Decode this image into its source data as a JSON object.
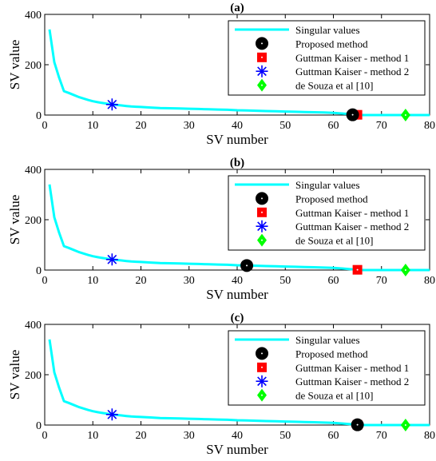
{
  "chart_data": [
    {
      "type": "line",
      "title": "(a)",
      "xlabel": "SV number",
      "ylabel": "SV value",
      "xlim": [
        0,
        80
      ],
      "ylim": [
        0,
        400
      ],
      "xticks": [
        0,
        10,
        20,
        30,
        40,
        50,
        60,
        70,
        80
      ],
      "yticks": [
        0,
        200,
        400
      ],
      "legend_position": "top-right",
      "series": [
        {
          "name": "Singular values",
          "kind": "line",
          "color": "#00ffff",
          "x": [
            1,
            2,
            3,
            4,
            5,
            6,
            7,
            8,
            9,
            10,
            11,
            12,
            13,
            14,
            15,
            16,
            17,
            18,
            19,
            20,
            22,
            24,
            26,
            28,
            30,
            32,
            34,
            36,
            38,
            40,
            42,
            44,
            46,
            48,
            50,
            52,
            54,
            56,
            58,
            60,
            62,
            64,
            65,
            66,
            68,
            70,
            72,
            74,
            76,
            78,
            80
          ],
          "y": [
            340,
            210,
            148,
            95,
            88,
            80,
            72,
            66,
            60,
            55,
            51,
            48,
            45,
            42,
            40,
            38,
            36,
            34,
            33,
            32,
            30,
            28,
            27,
            26,
            25,
            24,
            23,
            22,
            21,
            19,
            18,
            17,
            16,
            15,
            14,
            13,
            12,
            11,
            10,
            9,
            6,
            3,
            1,
            0,
            0,
            0,
            0,
            0,
            0,
            0,
            0
          ]
        },
        {
          "name": "Proposed method",
          "kind": "marker",
          "marker": "circle",
          "color": "#000000",
          "x": [
            64
          ],
          "y": [
            1
          ]
        },
        {
          "name": "Guttman Kaiser - method 1",
          "kind": "marker",
          "marker": "square",
          "color": "#ff0000",
          "x": [
            65
          ],
          "y": [
            1
          ]
        },
        {
          "name": "Guttman Kaiser - method 2",
          "kind": "marker",
          "marker": "asterisk",
          "color": "#0000ff",
          "x": [
            14
          ],
          "y": [
            42
          ]
        },
        {
          "name": "de Souza et al [10]",
          "kind": "marker",
          "marker": "diamond",
          "color": "#00ff00",
          "x": [
            75
          ],
          "y": [
            0
          ]
        }
      ]
    },
    {
      "type": "line",
      "title": "(b)",
      "xlabel": "SV number",
      "ylabel": "SV value",
      "xlim": [
        0,
        80
      ],
      "ylim": [
        0,
        400
      ],
      "xticks": [
        0,
        10,
        20,
        30,
        40,
        50,
        60,
        70,
        80
      ],
      "yticks": [
        0,
        200,
        400
      ],
      "legend_position": "top-right",
      "series": [
        {
          "name": "Singular values",
          "kind": "line",
          "color": "#00ffff",
          "x": [
            1,
            2,
            3,
            4,
            5,
            6,
            7,
            8,
            9,
            10,
            11,
            12,
            13,
            14,
            15,
            16,
            17,
            18,
            19,
            20,
            22,
            24,
            26,
            28,
            30,
            32,
            34,
            36,
            38,
            40,
            42,
            44,
            46,
            48,
            50,
            52,
            54,
            56,
            58,
            60,
            62,
            64,
            65,
            66,
            68,
            70,
            72,
            74,
            76,
            78,
            80
          ],
          "y": [
            340,
            210,
            148,
            95,
            88,
            80,
            72,
            66,
            60,
            55,
            51,
            48,
            45,
            42,
            40,
            38,
            36,
            34,
            33,
            32,
            30,
            28,
            27,
            26,
            25,
            24,
            23,
            22,
            21,
            19,
            18,
            17,
            16,
            15,
            14,
            13,
            12,
            11,
            10,
            9,
            6,
            3,
            1,
            0,
            0,
            0,
            0,
            0,
            0,
            0,
            0
          ]
        },
        {
          "name": "Proposed method",
          "kind": "marker",
          "marker": "circle",
          "color": "#000000",
          "x": [
            42
          ],
          "y": [
            18
          ]
        },
        {
          "name": "Guttman Kaiser - method 1",
          "kind": "marker",
          "marker": "square",
          "color": "#ff0000",
          "x": [
            65
          ],
          "y": [
            1
          ]
        },
        {
          "name": "Guttman Kaiser - method 2",
          "kind": "marker",
          "marker": "asterisk",
          "color": "#0000ff",
          "x": [
            14
          ],
          "y": [
            42
          ]
        },
        {
          "name": "de Souza et al [10]",
          "kind": "marker",
          "marker": "diamond",
          "color": "#00ff00",
          "x": [
            75
          ],
          "y": [
            0
          ]
        }
      ]
    },
    {
      "type": "line",
      "title": "(c)",
      "xlabel": "SV number",
      "ylabel": "SV value",
      "xlim": [
        0,
        80
      ],
      "ylim": [
        0,
        400
      ],
      "xticks": [
        0,
        10,
        20,
        30,
        40,
        50,
        60,
        70,
        80
      ],
      "yticks": [
        0,
        200,
        400
      ],
      "legend_position": "top-right",
      "series": [
        {
          "name": "Singular values",
          "kind": "line",
          "color": "#00ffff",
          "x": [
            1,
            2,
            3,
            4,
            5,
            6,
            7,
            8,
            9,
            10,
            11,
            12,
            13,
            14,
            15,
            16,
            17,
            18,
            19,
            20,
            22,
            24,
            26,
            28,
            30,
            32,
            34,
            36,
            38,
            40,
            42,
            44,
            46,
            48,
            50,
            52,
            54,
            56,
            58,
            60,
            62,
            64,
            65,
            66,
            68,
            70,
            72,
            74,
            76,
            78,
            80
          ],
          "y": [
            340,
            210,
            148,
            95,
            88,
            80,
            72,
            66,
            60,
            55,
            51,
            48,
            45,
            42,
            40,
            38,
            36,
            34,
            33,
            32,
            30,
            28,
            27,
            26,
            25,
            24,
            23,
            22,
            21,
            19,
            18,
            17,
            16,
            15,
            14,
            13,
            12,
            11,
            10,
            9,
            6,
            3,
            1,
            0,
            0,
            0,
            0,
            0,
            0,
            0,
            0
          ]
        },
        {
          "name": "Proposed method",
          "kind": "marker",
          "marker": "circle",
          "color": "#000000",
          "x": [
            65
          ],
          "y": [
            1
          ]
        },
        {
          "name": "Guttman Kaiser - method 1",
          "kind": "marker",
          "marker": "square",
          "color": "#ff0000",
          "x": [
            65
          ],
          "y": [
            1
          ]
        },
        {
          "name": "Guttman Kaiser - method 2",
          "kind": "marker",
          "marker": "asterisk",
          "color": "#0000ff",
          "x": [
            14
          ],
          "y": [
            42
          ]
        },
        {
          "name": "de Souza et al [10]",
          "kind": "marker",
          "marker": "diamond",
          "color": "#00ff00",
          "x": [
            75
          ],
          "y": [
            0
          ]
        }
      ]
    }
  ]
}
